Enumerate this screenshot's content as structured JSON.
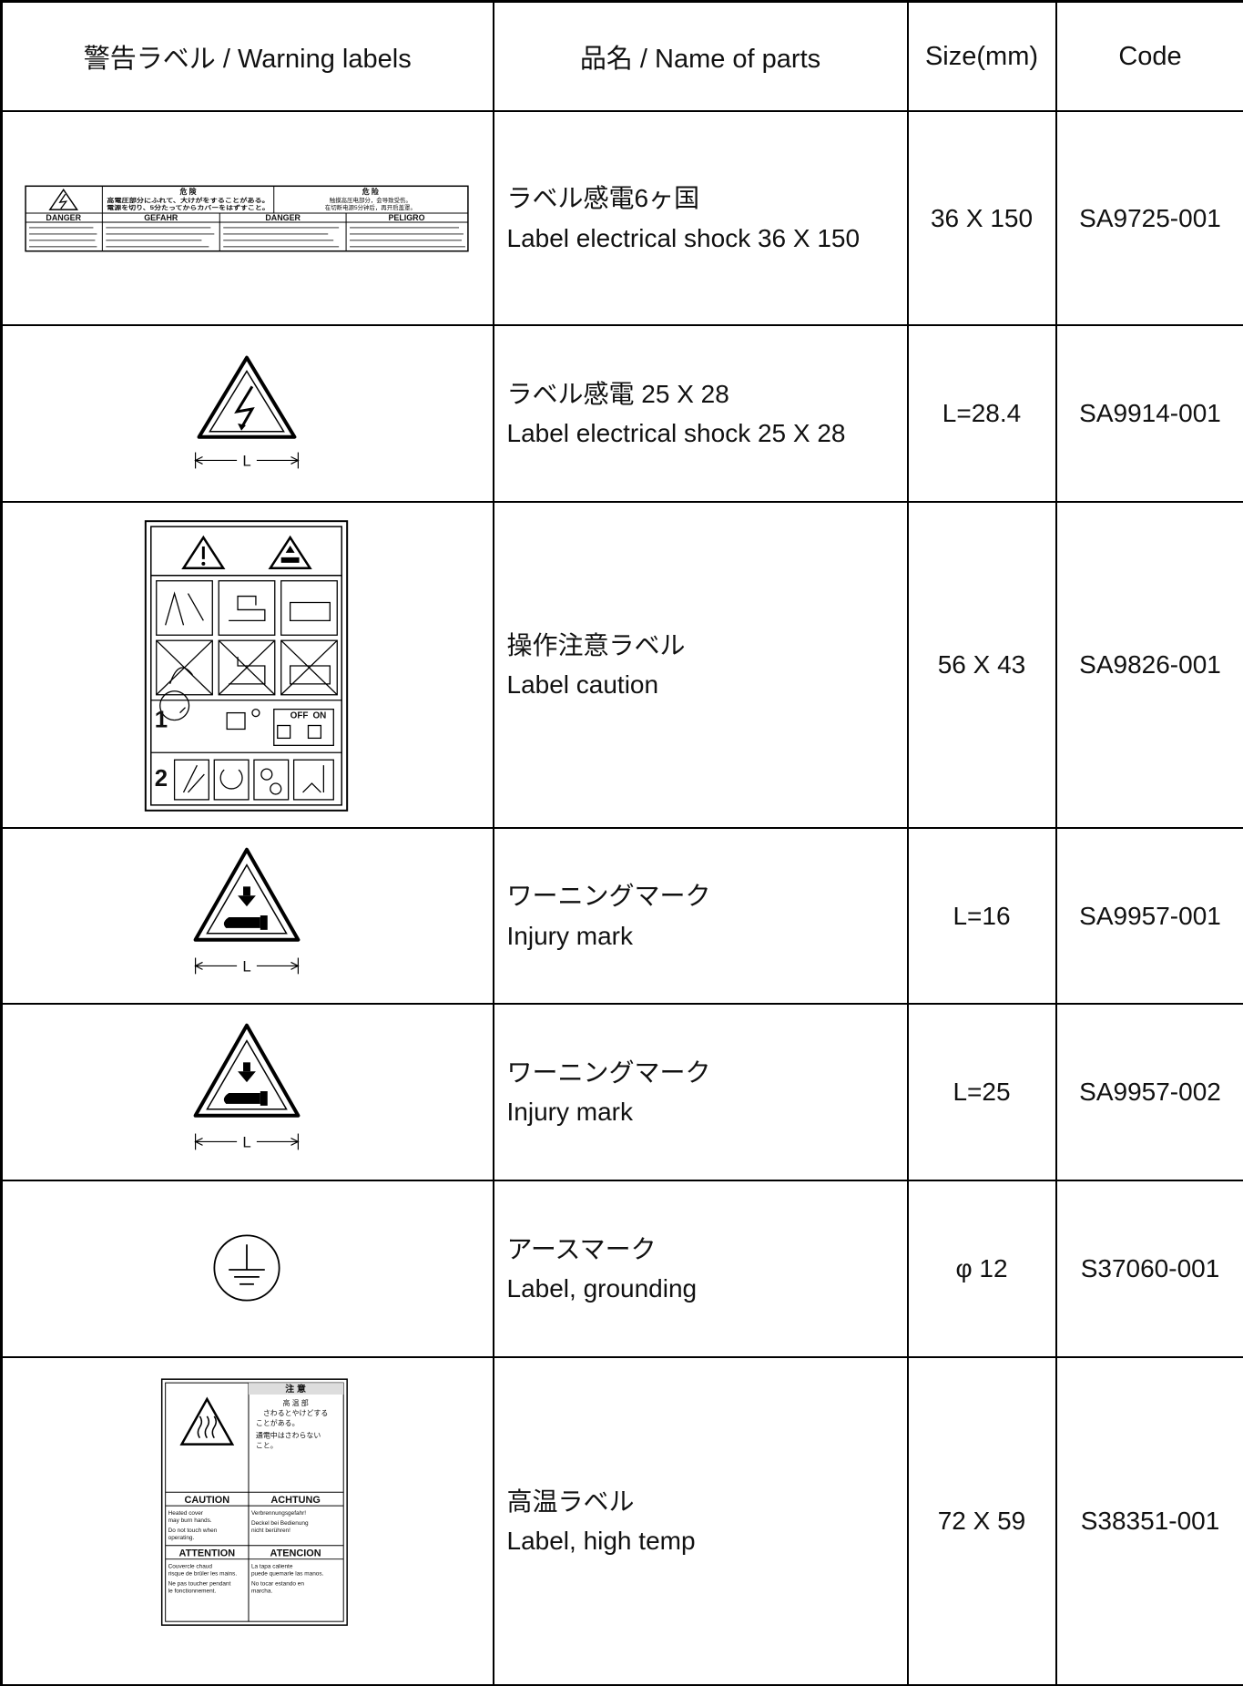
{
  "header": [
    "警告ラベル / Warning labels",
    "品名 / Name of parts",
    "Size(mm)",
    "Code"
  ],
  "rows": [
    {
      "name_ja": "ラベル感電6ヶ国",
      "name_en": "Label electrical shock 36 X 150",
      "size": "36 X 150",
      "code": "SA9725-001",
      "label_texts": [
        "危 険",
        "高電圧部分にふれて、大けがをすることがある。",
        "電源を切り、5分たってからカバーをはずすこと。",
        "危 险",
        "触摸高压电部分，会导致受伤。",
        "在切断电源5分钟后，再开启盖罩。",
        "DANGER",
        "GEFAHR",
        "DANGER",
        "PELIGRO"
      ]
    },
    {
      "name_ja": "ラベル感電 25 X 28",
      "name_en": "Label electrical shock 25 X 28",
      "size": "L=28.4",
      "code": "SA9914-001",
      "label_texts": [
        "L"
      ]
    },
    {
      "name_ja": "操作注意ラベル",
      "name_en": "Label caution",
      "size": "56 X 43",
      "code": "SA9826-001",
      "label_texts": [
        "1",
        "2",
        "OFF",
        "ON"
      ]
    },
    {
      "name_ja": "ワーニングマーク",
      "name_en": "Injury mark",
      "size": "L=16",
      "code": "SA9957-001",
      "label_texts": [
        "L"
      ]
    },
    {
      "name_ja": "ワーニングマーク",
      "name_en": "Injury mark",
      "size": "L=25",
      "code": "SA9957-002",
      "label_texts": [
        "L"
      ]
    },
    {
      "name_ja": "アースマーク",
      "name_en": "Label, grounding",
      "size": "φ 12",
      "code": "S37060-001",
      "label_texts": []
    },
    {
      "name_ja": "高温ラベル",
      "name_en": "Label, high temp",
      "size": "72 X 59",
      "code": "S38351-001",
      "label_texts": [
        "注 意",
        "高 温 部",
        "さわるとやけどする",
        "ことがある。",
        "通電中はさわらない",
        "こと。",
        "CAUTION",
        "ACHTUNG",
        "Heated cover",
        "may burn hands.",
        "Do not touch when",
        "operating.",
        "Verbrennungsgefahr!",
        "Deckel bei Bedienung",
        "nicht berühren!",
        "ATTENTION",
        "ATENCION",
        "Couvercle chaud",
        "risque de brûler les mains.",
        "Ne pas toucher pendant",
        "le fonctionnement.",
        "La tapa caliente",
        "puede quemarle las manos.",
        "No tocar estando en",
        "marcha."
      ]
    }
  ]
}
